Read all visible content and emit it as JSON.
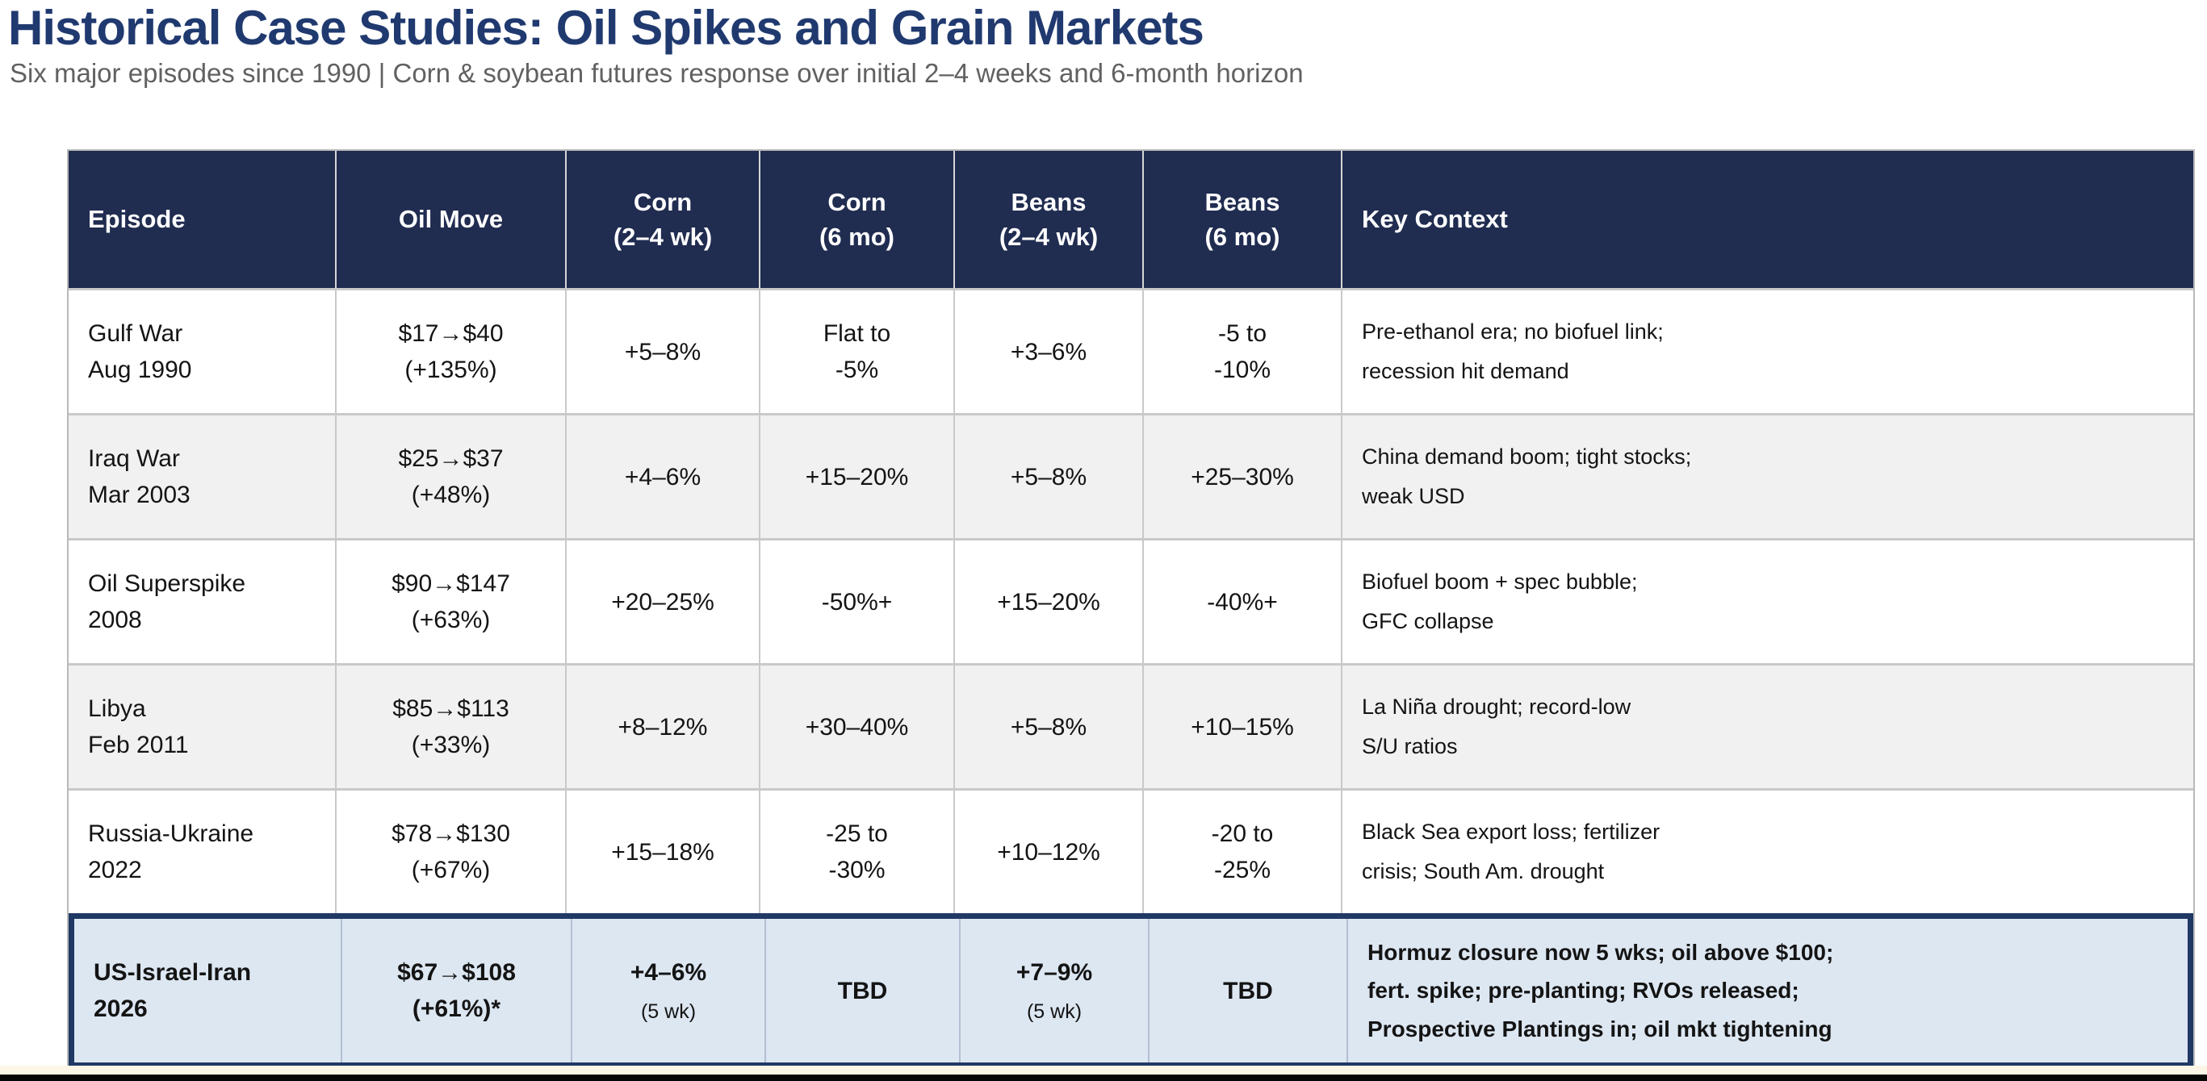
{
  "page": {
    "title": "Historical Case Studies: Oil Spikes and Grain Markets",
    "subtitle": "Six major episodes since 1990 | Corn & soybean futures response over initial 2–4 weeks and 6-month horizon"
  },
  "colors": {
    "title_navy": "#203a70",
    "header_bg": "#202c50",
    "header_text": "#ffffff",
    "stripe_bg": "#f1f1f1",
    "highlight_bg": "#dde7f2",
    "highlight_border": "#1f3864"
  },
  "table": {
    "columns": [
      "Episode",
      "Oil Move",
      "Corn\n(2–4 wk)",
      "Corn\n(6 mo)",
      "Beans\n(2–4 wk)",
      "Beans\n(6 mo)",
      "Key Context"
    ],
    "rows": [
      {
        "episode": "Gulf War\nAug 1990",
        "oil_move": "$17→$40\n(+135%)",
        "corn_short": "+5–8%",
        "corn_6mo": "Flat to\n-5%",
        "beans_short": "+3–6%",
        "beans_6mo": "-5 to\n-10%",
        "key_context": "Pre-ethanol era; no biofuel link;\nrecession hit demand"
      },
      {
        "episode": "Iraq War\nMar 2003",
        "oil_move": "$25→$37\n(+48%)",
        "corn_short": "+4–6%",
        "corn_6mo": "+15–20%",
        "beans_short": "+5–8%",
        "beans_6mo": "+25–30%",
        "key_context": "China demand boom; tight stocks;\nweak USD"
      },
      {
        "episode": "Oil Superspike\n2008",
        "oil_move": "$90→$147\n(+63%)",
        "corn_short": "+20–25%",
        "corn_6mo": "-50%+",
        "beans_short": "+15–20%",
        "beans_6mo": "-40%+",
        "key_context": "Biofuel boom + spec bubble;\nGFC collapse"
      },
      {
        "episode": "Libya\nFeb 2011",
        "oil_move": "$85→$113\n(+33%)",
        "corn_short": "+8–12%",
        "corn_6mo": "+30–40%",
        "beans_short": "+5–8%",
        "beans_6mo": "+10–15%",
        "key_context": "La Niña drought; record-low\nS/U ratios"
      },
      {
        "episode": "Russia-Ukraine\n2022",
        "oil_move": "$78→$130\n(+67%)",
        "corn_short": "+15–18%",
        "corn_6mo": "-25 to\n-30%",
        "beans_short": "+10–12%",
        "beans_6mo": "-20 to\n-25%",
        "key_context": "Black Sea export loss; fertilizer\ncrisis; South Am. drought"
      }
    ],
    "highlight": {
      "episode": "US-Israel-Iran\n2026",
      "oil_move": "$67→$108\n(+61%)*",
      "corn_short": {
        "value": "+4–6%",
        "note": "(5 wk)"
      },
      "corn_6mo": "TBD",
      "beans_short": {
        "value": "+7–9%",
        "note": "(5 wk)"
      },
      "beans_6mo": "TBD",
      "key_context": "Hormuz closure now 5 wks; oil above $100;\nfert. spike; pre-planting; RVOs released;\nProspective Plantings in; oil mkt tightening"
    }
  }
}
